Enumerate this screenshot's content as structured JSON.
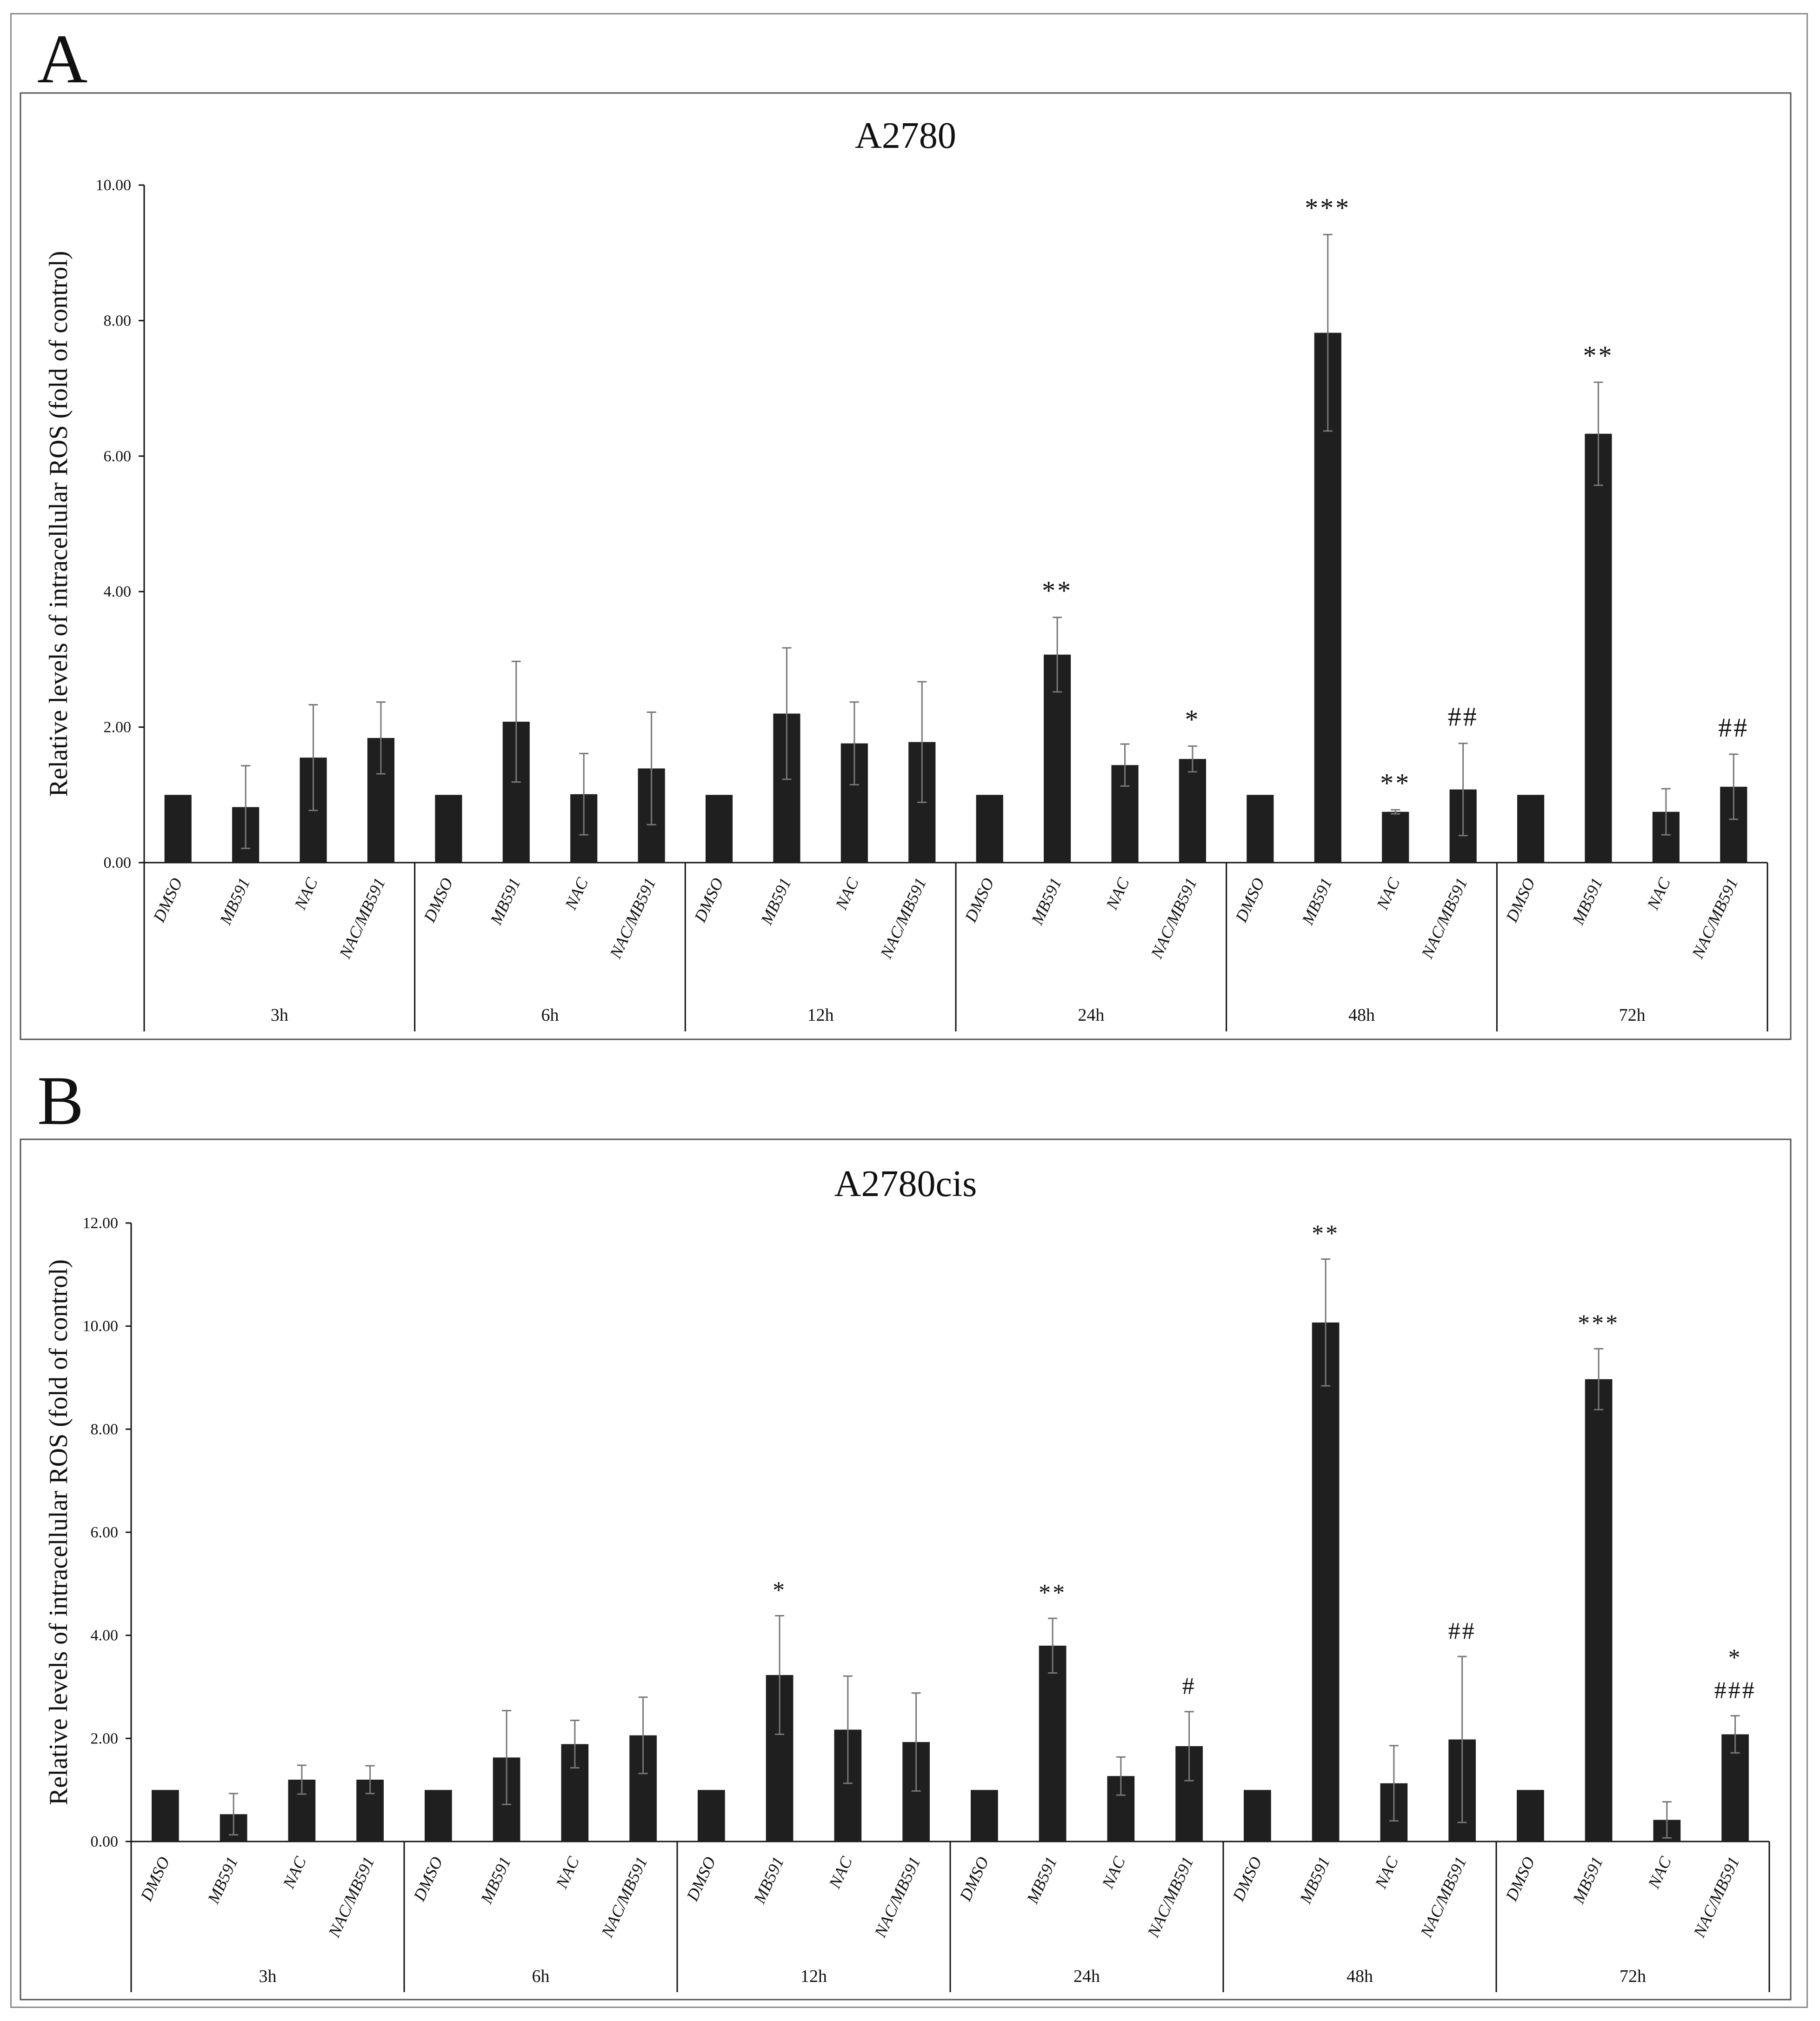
{
  "panels": [
    {
      "letter": "A"
    },
    {
      "letter": "B"
    }
  ],
  "chart_data": [
    {
      "type": "bar",
      "title": "A2780",
      "ylabel": "Relative levels of intracellular ROS (fold of control)",
      "xlabel": "",
      "ylim": [
        0,
        10
      ],
      "yticks": [
        0,
        2,
        4,
        6,
        8,
        10
      ],
      "ytick_labels": [
        "0.00",
        "2.00",
        "4.00",
        "6.00",
        "8.00",
        "10.00"
      ],
      "treatments": [
        "DMSO",
        "MB591",
        "NAC",
        "NAC/MB591"
      ],
      "groups": [
        {
          "label": "3h",
          "values": [
            1.0,
            0.82,
            1.55,
            1.84
          ],
          "errors": [
            0.0,
            0.61,
            0.78,
            0.53
          ],
          "annotations": [
            "",
            "",
            "",
            ""
          ]
        },
        {
          "label": "6h",
          "values": [
            1.0,
            2.08,
            1.01,
            1.39
          ],
          "errors": [
            0.0,
            0.89,
            0.6,
            0.83
          ],
          "annotations": [
            "",
            "",
            "",
            ""
          ]
        },
        {
          "label": "12h",
          "values": [
            1.0,
            2.2,
            1.76,
            1.78
          ],
          "errors": [
            0.0,
            0.97,
            0.61,
            0.89
          ],
          "annotations": [
            "",
            "",
            "",
            ""
          ]
        },
        {
          "label": "24h",
          "values": [
            1.0,
            3.07,
            1.44,
            1.53
          ],
          "errors": [
            0.0,
            0.55,
            0.31,
            0.19
          ],
          "annotations": [
            "",
            "**",
            "",
            "*"
          ]
        },
        {
          "label": "48h",
          "values": [
            1.0,
            7.82,
            0.75,
            1.08
          ],
          "errors": [
            0.0,
            1.45,
            0.03,
            0.68
          ],
          "annotations": [
            "",
            "***",
            "**",
            "##"
          ]
        },
        {
          "label": "72h",
          "values": [
            1.0,
            6.33,
            0.75,
            1.12
          ],
          "errors": [
            0.0,
            0.76,
            0.34,
            0.48
          ],
          "annotations": [
            "",
            "**",
            "",
            "##"
          ]
        }
      ]
    },
    {
      "type": "bar",
      "title": "A2780cis",
      "ylabel": "Relative levels of intracellular ROS (fold of control)",
      "xlabel": "",
      "ylim": [
        0,
        12
      ],
      "yticks": [
        0,
        2,
        4,
        6,
        8,
        10,
        12
      ],
      "ytick_labels": [
        "0.00",
        "2.00",
        "4.00",
        "6.00",
        "8.00",
        "10.00",
        "12.00"
      ],
      "treatments": [
        "DMSO",
        "MB591",
        "NAC",
        "NAC/MB591"
      ],
      "groups": [
        {
          "label": "3h",
          "values": [
            1.0,
            0.53,
            1.2,
            1.2
          ],
          "errors": [
            0.0,
            0.4,
            0.28,
            0.27
          ],
          "annotations": [
            "",
            "",
            "",
            ""
          ]
        },
        {
          "label": "6h",
          "values": [
            1.0,
            1.63,
            1.89,
            2.06
          ],
          "errors": [
            0.0,
            0.91,
            0.46,
            0.74
          ],
          "annotations": [
            "",
            "",
            "",
            ""
          ]
        },
        {
          "label": "12h",
          "values": [
            1.0,
            3.23,
            2.17,
            1.93
          ],
          "errors": [
            0.0,
            1.15,
            1.04,
            0.95
          ],
          "annotations": [
            "",
            "*",
            "",
            ""
          ]
        },
        {
          "label": "24h",
          "values": [
            1.0,
            3.8,
            1.27,
            1.85
          ],
          "errors": [
            0.0,
            0.53,
            0.37,
            0.67
          ],
          "annotations": [
            "",
            "**",
            "",
            "#"
          ]
        },
        {
          "label": "48h",
          "values": [
            1.0,
            10.07,
            1.13,
            1.98
          ],
          "errors": [
            0.0,
            1.23,
            0.73,
            1.61
          ],
          "annotations": [
            "",
            "**",
            "",
            "##"
          ]
        },
        {
          "label": "72h",
          "values": [
            1.0,
            8.97,
            0.42,
            2.08
          ],
          "errors": [
            0.0,
            0.59,
            0.35,
            0.36
          ],
          "annotations": [
            "",
            "***",
            "",
            "*\n###"
          ]
        }
      ]
    }
  ]
}
